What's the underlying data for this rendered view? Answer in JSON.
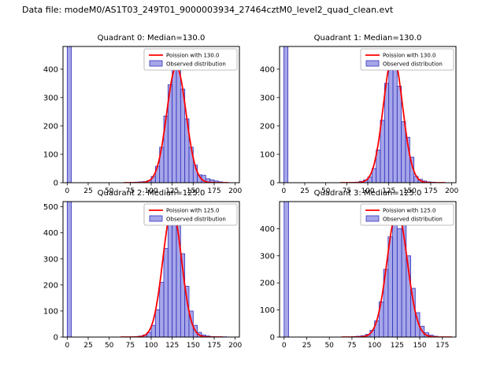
{
  "figure": {
    "title": "Data file: modeM0/AS1T03_249T01_9000003934_27464cztM0_level2_quad_clean.evt"
  },
  "colors": {
    "curve": "#ff0000",
    "bar_fill": "#8080e0",
    "bar_edge": "#3333bb",
    "axis": "#000000",
    "legend_border": "#aaaaaa",
    "background": "#ffffff"
  },
  "chart_data": [
    {
      "type": "bar",
      "title": "Quadrant 0: Median=130.0",
      "legend": [
        "Poission with 130.0",
        "Observed distribution"
      ],
      "median": 130.0,
      "xlabel": "",
      "ylabel": "",
      "xlim": [
        -5,
        205
      ],
      "ylim": [
        0,
        480
      ],
      "xticks": [
        0,
        25,
        50,
        75,
        100,
        125,
        150,
        175,
        200
      ],
      "yticks": [
        0,
        100,
        200,
        300,
        400
      ],
      "bin_width": 5,
      "bins": [
        [
          0,
          600
        ],
        [
          75,
          1
        ],
        [
          80,
          2
        ],
        [
          85,
          3
        ],
        [
          90,
          4
        ],
        [
          95,
          8
        ],
        [
          100,
          22
        ],
        [
          105,
          58
        ],
        [
          110,
          125
        ],
        [
          115,
          235
        ],
        [
          120,
          345
        ],
        [
          125,
          420
        ],
        [
          130,
          400
        ],
        [
          135,
          330
        ],
        [
          140,
          225
        ],
        [
          145,
          125
        ],
        [
          150,
          62
        ],
        [
          155,
          28
        ],
        [
          160,
          26
        ],
        [
          165,
          14
        ],
        [
          170,
          10
        ],
        [
          175,
          6
        ],
        [
          180,
          3
        ]
      ],
      "poisson": {
        "lambda": 130,
        "peak": 410
      }
    },
    {
      "type": "bar",
      "title": "Quadrant 1: Median=130.0",
      "legend": [
        "Poission with 130.0",
        "Observed distribution"
      ],
      "median": 130.0,
      "xlabel": "",
      "ylabel": "",
      "xlim": [
        -5,
        205
      ],
      "ylim": [
        0,
        480
      ],
      "xticks": [
        0,
        25,
        50,
        75,
        100,
        125,
        150,
        175,
        200
      ],
      "yticks": [
        0,
        100,
        200,
        300,
        400
      ],
      "bin_width": 5,
      "bins": [
        [
          0,
          600
        ],
        [
          80,
          1
        ],
        [
          85,
          2
        ],
        [
          90,
          5
        ],
        [
          95,
          10
        ],
        [
          100,
          20
        ],
        [
          105,
          50
        ],
        [
          110,
          115
        ],
        [
          115,
          220
        ],
        [
          120,
          350
        ],
        [
          125,
          440
        ],
        [
          130,
          455
        ],
        [
          135,
          340
        ],
        [
          140,
          215
        ],
        [
          145,
          160
        ],
        [
          150,
          90
        ],
        [
          155,
          22
        ],
        [
          160,
          12
        ],
        [
          165,
          6
        ],
        [
          170,
          3
        ],
        [
          175,
          2
        ]
      ],
      "poisson": {
        "lambda": 130,
        "peak": 450
      }
    },
    {
      "type": "bar",
      "title": "Quadrant 2: Median=125.0",
      "legend": [
        "Poission with 125.0",
        "Observed distribution"
      ],
      "median": 125.0,
      "xlabel": "",
      "ylabel": "",
      "xlim": [
        -5,
        205
      ],
      "ylim": [
        0,
        520
      ],
      "xticks": [
        0,
        25,
        50,
        75,
        100,
        125,
        150,
        175,
        200
      ],
      "yticks": [
        0,
        100,
        200,
        300,
        400,
        500
      ],
      "bin_width": 5,
      "bins": [
        [
          0,
          600
        ],
        [
          75,
          1
        ],
        [
          80,
          2
        ],
        [
          85,
          4
        ],
        [
          90,
          8
        ],
        [
          95,
          18
        ],
        [
          100,
          45
        ],
        [
          105,
          105
        ],
        [
          110,
          210
        ],
        [
          115,
          340
        ],
        [
          120,
          450
        ],
        [
          125,
          480
        ],
        [
          130,
          430
        ],
        [
          135,
          320
        ],
        [
          140,
          195
        ],
        [
          145,
          100
        ],
        [
          150,
          45
        ],
        [
          155,
          18
        ],
        [
          160,
          8
        ],
        [
          165,
          4
        ],
        [
          170,
          2
        ],
        [
          175,
          1
        ],
        [
          180,
          1
        ],
        [
          185,
          1
        ]
      ],
      "poisson": {
        "lambda": 125,
        "peak": 490
      }
    },
    {
      "type": "bar",
      "title": "Quadrant 3: Median=125.0",
      "legend": [
        "Poission with 125.0",
        "Observed distribution"
      ],
      "median": 125.0,
      "xlabel": "",
      "ylabel": "",
      "xlim": [
        -5,
        190
      ],
      "ylim": [
        0,
        500
      ],
      "xticks": [
        0,
        25,
        50,
        75,
        100,
        125,
        150,
        175
      ],
      "yticks": [
        0,
        100,
        200,
        300,
        400
      ],
      "bin_width": 5,
      "bins": [
        [
          0,
          600
        ],
        [
          75,
          2
        ],
        [
          80,
          3
        ],
        [
          85,
          5
        ],
        [
          90,
          10
        ],
        [
          95,
          25
        ],
        [
          100,
          60
        ],
        [
          105,
          130
        ],
        [
          110,
          250
        ],
        [
          115,
          370
        ],
        [
          120,
          465
        ],
        [
          125,
          400
        ],
        [
          130,
          455
        ],
        [
          135,
          300
        ],
        [
          140,
          180
        ],
        [
          145,
          90
        ],
        [
          150,
          40
        ],
        [
          155,
          16
        ],
        [
          160,
          7
        ],
        [
          165,
          3
        ]
      ],
      "poisson": {
        "lambda": 125,
        "peak": 465
      }
    }
  ]
}
